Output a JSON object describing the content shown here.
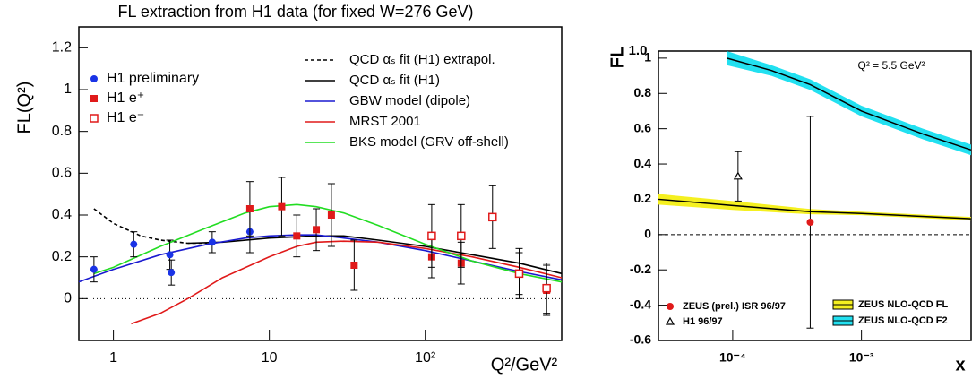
{
  "chart_data": [
    {
      "type": "line",
      "title": "FL extraction from H1 data (for fixed W=276 GeV)",
      "ylabel": "FL(Q²)",
      "xlabel": "Q²/GeV²",
      "xlog": true,
      "xlim": [
        0.6,
        750
      ],
      "ylim": [
        -0.2,
        1.3
      ],
      "xticks": [
        1,
        10,
        {
          "value": 100,
          "label": "10²"
        }
      ],
      "yticks": [
        0,
        0.2,
        0.4,
        0.6,
        0.8,
        1,
        1.2
      ],
      "zero_line": "dotted",
      "series": [
        {
          "name": "H1 preliminary",
          "color": "#1a33e6",
          "marker": "circle",
          "x": [
            0.75,
            1.35,
            2.3,
            2.35,
            4.3,
            7.5
          ],
          "values": [
            0.14,
            0.26,
            0.21,
            0.125,
            0.27,
            0.32
          ],
          "errors": [
            0.06,
            0.06,
            0.07,
            0.06,
            0.05,
            0.1
          ]
        },
        {
          "name": "H1 e⁺",
          "color": "#e01a1a",
          "marker": "square",
          "x": [
            7.5,
            12,
            15,
            20,
            25,
            35,
            110,
            170,
            400,
            600
          ],
          "values": [
            0.43,
            0.44,
            0.3,
            0.33,
            0.4,
            0.16,
            0.2,
            0.17,
            0.12,
            0.04
          ],
          "errors": [
            0.13,
            0.14,
            0.1,
            0.1,
            0.15,
            0.12,
            0.1,
            0.1,
            0.1,
            0.12
          ]
        },
        {
          "name": "H1 e⁻",
          "color": "#e01a1a",
          "marker": "open-square",
          "x": [
            110,
            170,
            270,
            400,
            600
          ],
          "values": [
            0.3,
            0.3,
            0.39,
            0.12,
            0.05
          ],
          "errors": [
            0.15,
            0.15,
            0.15,
            0.12,
            0.12
          ]
        },
        {
          "name": "QCD αₛ fit (H1) extrapol.",
          "color": "#000000",
          "dash": true,
          "x": [
            0.75,
            1,
            1.5,
            2,
            3,
            4
          ],
          "values": [
            0.43,
            0.36,
            0.3,
            0.28,
            0.265,
            0.265
          ]
        },
        {
          "name": "QCD αₛ fit (H1)",
          "color": "#000000",
          "x": [
            3,
            5,
            10,
            20,
            30,
            50,
            100,
            200,
            400,
            750
          ],
          "values": [
            0.265,
            0.27,
            0.29,
            0.3,
            0.3,
            0.28,
            0.25,
            0.21,
            0.17,
            0.12
          ]
        },
        {
          "name": "GBW model (dipole)",
          "color": "#1a1ad0",
          "x": [
            0.6,
            1,
            2,
            4,
            7,
            10,
            15,
            20,
            30,
            50,
            100,
            200,
            400,
            750
          ],
          "values": [
            0.08,
            0.14,
            0.21,
            0.26,
            0.29,
            0.3,
            0.305,
            0.305,
            0.29,
            0.27,
            0.23,
            0.18,
            0.13,
            0.09
          ]
        },
        {
          "name": "MRST 2001",
          "color": "#e01a1a",
          "x": [
            1.3,
            2,
            3,
            5,
            10,
            15,
            20,
            30,
            50,
            100,
            200,
            400,
            750
          ],
          "values": [
            -0.12,
            -0.07,
            0,
            0.1,
            0.2,
            0.25,
            0.27,
            0.275,
            0.27,
            0.24,
            0.2,
            0.15,
            0.1
          ]
        },
        {
          "name": "BKS model (GRV off-shell)",
          "color": "#22dd22",
          "x": [
            0.75,
            1,
            2,
            4,
            7,
            10,
            15,
            20,
            30,
            50,
            100,
            200,
            400,
            750
          ],
          "values": [
            0.12,
            0.15,
            0.25,
            0.34,
            0.41,
            0.44,
            0.45,
            0.44,
            0.41,
            0.35,
            0.26,
            0.18,
            0.12,
            0.08
          ]
        }
      ]
    },
    {
      "type": "line",
      "ylabel": "FL",
      "xlabel": "x",
      "annotations": [
        "1.0",
        "Q² = 5.5 GeV²"
      ],
      "xlog": true,
      "xlim": [
        2.65e-05,
        0.0071
      ],
      "ylim": [
        -0.6,
        1.04
      ],
      "xticks": [
        {
          "value": 0.0001,
          "label": "10⁻⁴"
        },
        {
          "value": 0.001,
          "label": "10⁻³"
        }
      ],
      "yticks": [
        -0.6,
        -0.4,
        -0.2,
        0,
        0.2,
        0.4,
        0.6,
        0.8,
        1
      ],
      "zero_line": "dashed",
      "series": [
        {
          "name": "ZEUS (prel.) ISR 96/97",
          "color": "#e01a1a",
          "marker": "circle",
          "x": [
            0.0004
          ],
          "values": [
            0.07
          ],
          "errors": [
            0.6
          ]
        },
        {
          "name": "H1 96/97",
          "color": "#000000",
          "marker": "triangle",
          "x": [
            0.00011
          ],
          "values": [
            0.33
          ],
          "errors": [
            0.14
          ]
        },
        {
          "name": "ZEUS NLO-QCD FL",
          "color": "#f5f020",
          "x": [
            2.65e-05,
            0.0001,
            0.0004,
            0.001,
            0.0071
          ],
          "values": [
            0.2,
            0.165,
            0.13,
            0.12,
            0.09
          ],
          "upper": [
            0.23,
            0.19,
            0.145,
            0.13,
            0.1
          ],
          "lower": [
            0.17,
            0.14,
            0.115,
            0.11,
            0.08
          ]
        },
        {
          "name": "ZEUS NLO-QCD F2",
          "color": "#22e0f0",
          "x": [
            9e-05,
            0.0002,
            0.0004,
            0.001,
            0.003,
            0.0071
          ],
          "values": [
            1.0,
            0.93,
            0.85,
            0.7,
            0.57,
            0.48
          ],
          "upper": [
            1.04,
            0.96,
            0.88,
            0.73,
            0.6,
            0.51
          ],
          "lower": [
            0.96,
            0.9,
            0.82,
            0.67,
            0.54,
            0.45
          ]
        }
      ]
    }
  ]
}
